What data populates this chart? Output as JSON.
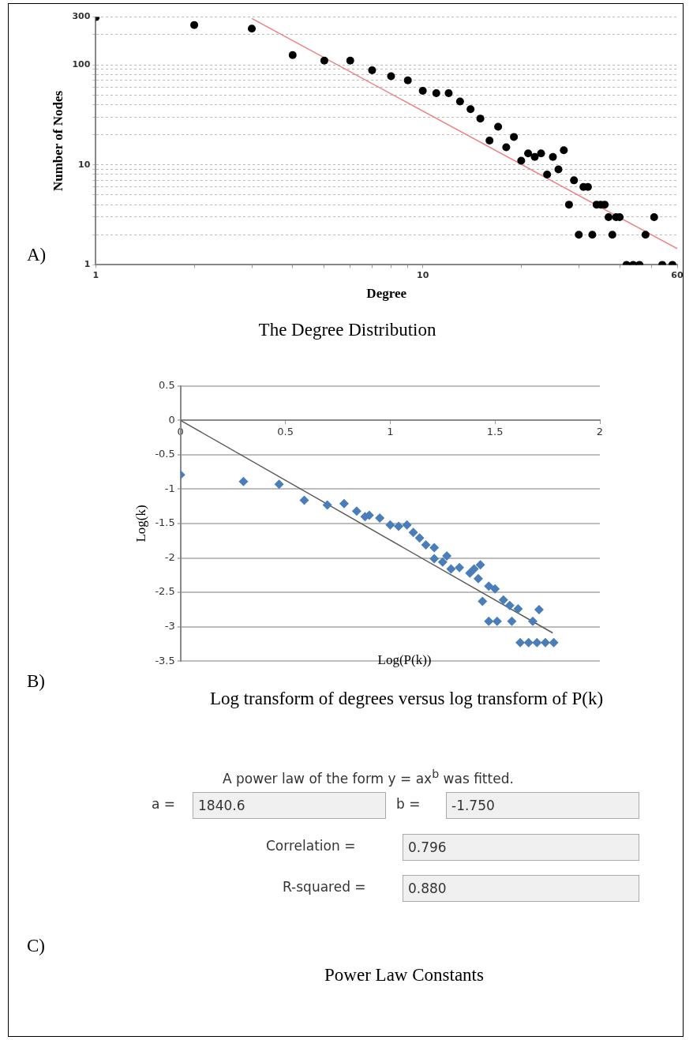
{
  "chart_data": [
    {
      "type": "scatter",
      "title": "The Degree Distribution",
      "xlabel": "Degree",
      "ylabel": "Number of Nodes",
      "annotations": [
        "A)"
      ],
      "log": "xy",
      "grid": "y",
      "marker": "circle",
      "xlim": [
        1,
        60
      ],
      "ylim": [
        1,
        300
      ],
      "xticks": [
        1,
        {
          "value": 2,
          "label": null
        },
        {
          "value": 3,
          "label": null
        },
        {
          "value": 4,
          "label": null
        },
        {
          "value": 5,
          "label": null
        },
        {
          "value": 6,
          "label": null
        },
        {
          "value": 7,
          "label": null
        },
        {
          "value": 8,
          "label": null
        },
        {
          "value": 9,
          "label": null
        },
        10,
        {
          "value": 20,
          "label": null
        },
        {
          "value": 30,
          "label": null
        },
        {
          "value": 40,
          "label": null
        },
        {
          "value": 50,
          "label": null
        },
        60
      ],
      "yticks": [
        1,
        {
          "value": 2,
          "label": null
        },
        {
          "value": 3,
          "label": null
        },
        {
          "value": 4,
          "label": null
        },
        {
          "value": 5,
          "label": null
        },
        {
          "value": 6,
          "label": null
        },
        {
          "value": 7,
          "label": null
        },
        {
          "value": 8,
          "label": null
        },
        {
          "value": 9,
          "label": null
        },
        10,
        {
          "value": 20,
          "label": null
        },
        {
          "value": 30,
          "label": null
        },
        {
          "value": 40,
          "label": null
        },
        {
          "value": 50,
          "label": null
        },
        {
          "value": 60,
          "label": null
        },
        {
          "value": 70,
          "label": null
        },
        {
          "value": 80,
          "label": null
        },
        {
          "value": 90,
          "label": null
        },
        100,
        {
          "value": 200,
          "label": null
        },
        300
      ],
      "series": [
        {
          "color": "#000000",
          "x": [
            1,
            2,
            3,
            4,
            5,
            6,
            7,
            8,
            9,
            10,
            11,
            12,
            13,
            14,
            15,
            16,
            17,
            18,
            19,
            20,
            21,
            22,
            23,
            24,
            25,
            26,
            27,
            28,
            29,
            30,
            31,
            32,
            33,
            34,
            35,
            36,
            37,
            38,
            39,
            40,
            42,
            44,
            46,
            48,
            51,
            54,
            58
          ],
          "values": [
            300,
            250,
            230,
            125,
            110,
            110,
            88,
            77,
            70,
            55,
            52,
            52,
            43,
            36,
            29,
            17.5,
            24,
            15,
            19,
            11,
            13,
            12,
            13,
            8,
            12,
            9,
            14,
            4,
            7,
            2,
            6,
            6,
            2,
            4,
            4,
            4,
            3,
            2,
            3,
            3,
            1,
            1,
            1,
            2,
            3,
            1,
            1
          ]
        },
        {
          "type": "line",
          "marker": "none",
          "color": "#f08080",
          "x": [
            3,
            60
          ],
          "values": [
            290,
            1.45
          ]
        }
      ]
    },
    {
      "type": "scatter",
      "title": "Log transform of degrees versus log transform of P(k)",
      "xlabel": "Log(P(k))",
      "ylabel": "Log(k)",
      "annotations": [
        "B)"
      ],
      "grid": "y",
      "marker": "diamond",
      "xlim": [
        0,
        2
      ],
      "ylim": [
        -3.5,
        0.5
      ],
      "xticks": [
        0,
        0.5,
        1,
        1.5,
        2
      ],
      "yticks": [
        -3.5,
        -3,
        -2.5,
        -2,
        -1.5,
        -1,
        -0.5,
        0,
        0.5
      ],
      "series": [
        {
          "color": "#4a7ebb",
          "x": [
            0,
            0.3,
            0.47,
            0.59,
            0.7,
            0.78,
            0.84,
            0.88,
            0.9,
            0.95,
            1.0,
            1.04,
            1.08,
            1.11,
            1.14,
            1.17,
            1.21,
            1.21,
            1.27,
            1.25,
            1.29,
            1.33,
            1.38,
            1.4,
            1.43,
            1.42,
            1.47,
            1.5,
            1.44,
            1.54,
            1.57,
            1.61,
            1.71,
            1.47,
            1.51,
            1.58,
            1.68,
            1.62,
            1.66,
            1.7,
            1.74,
            1.78
          ],
          "values": [
            -0.79,
            -0.89,
            -0.93,
            -1.16,
            -1.23,
            -1.21,
            -1.32,
            -1.4,
            -1.38,
            -1.42,
            -1.52,
            -1.54,
            -1.52,
            -1.63,
            -1.71,
            -1.81,
            -1.85,
            -2.01,
            -1.97,
            -2.06,
            -2.16,
            -2.14,
            -2.22,
            -2.16,
            -2.1,
            -2.3,
            -2.41,
            -2.45,
            -2.63,
            -2.61,
            -2.69,
            -2.74,
            -2.75,
            -2.92,
            -2.92,
            -2.92,
            -2.92,
            -3.23,
            -3.23,
            -3.23,
            -3.23,
            -3.23
          ]
        },
        {
          "type": "line",
          "marker": "none",
          "color": "#595959",
          "x": [
            0,
            1.775
          ],
          "values": [
            0,
            -3.09
          ]
        }
      ]
    },
    {
      "type": "other",
      "title": "Power Law Constants",
      "annotations": [
        "C)",
        "A power law of the form y = ax$^{b}$ was fitted.",
        "a =",
        "1840.6",
        "b =",
        "-1.750",
        "Correlation =",
        "0.796",
        "R-squared =",
        "0.880"
      ]
    }
  ]
}
